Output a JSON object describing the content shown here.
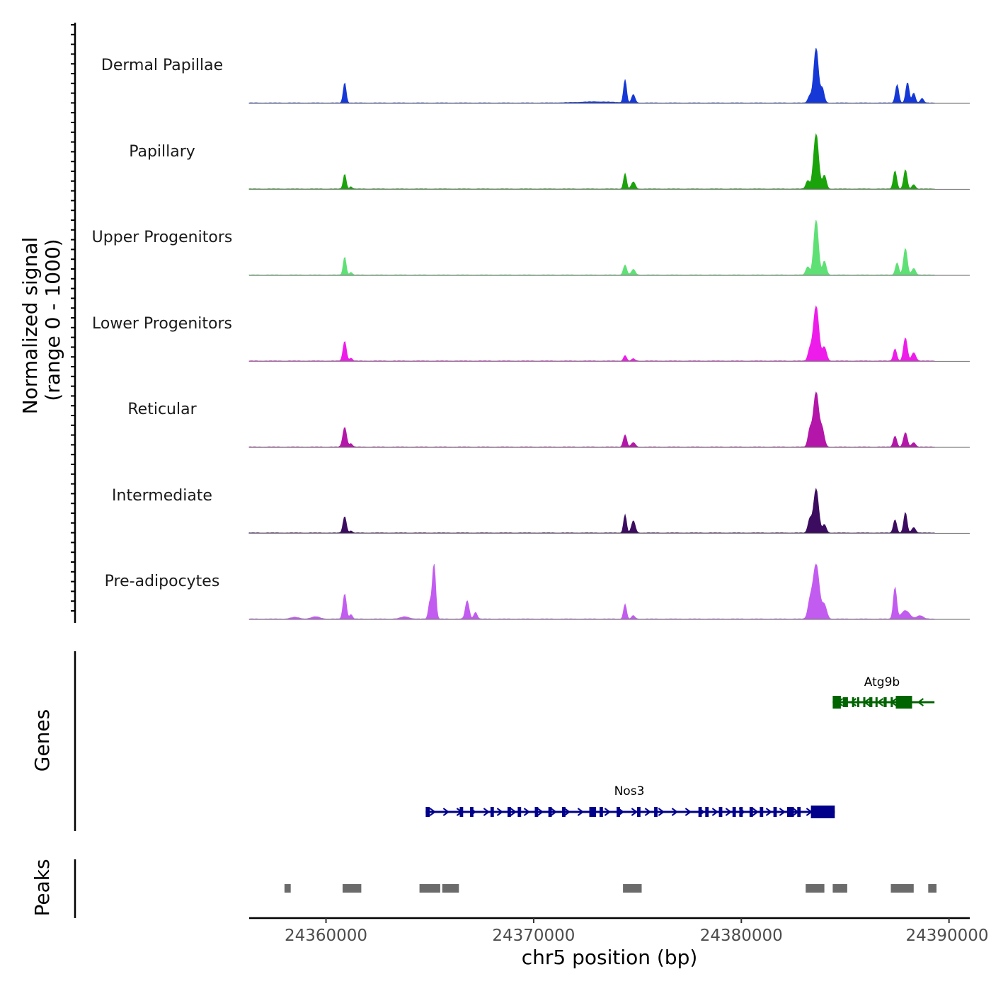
{
  "chart_data": {
    "type": "area",
    "title": "",
    "chromosome": "chr5",
    "xlabel": "chr5 position (bp)",
    "xlim": [
      24356300,
      24391000
    ],
    "xticks": [
      24360000,
      24370000,
      24380000,
      24390000
    ],
    "xtick_labels": [
      "24360000",
      "24370000",
      "24380000",
      "24390000"
    ],
    "ylabel_line1": "Normalized signal",
    "ylabel_line2": "(range 0 - 1000)",
    "signal_ylim": [
      0,
      1000
    ],
    "tracks": [
      {
        "name": "Dermal Papillae",
        "color": "#1538d6",
        "peaks": [
          [
            24360900,
            370,
            70
          ],
          [
            24373000,
            20,
            900
          ],
          [
            24374400,
            420,
            70
          ],
          [
            24374800,
            150,
            80
          ],
          [
            24383300,
            130,
            90
          ],
          [
            24383600,
            1000,
            110
          ],
          [
            24383900,
            260,
            90
          ],
          [
            24387500,
            330,
            80
          ],
          [
            24388000,
            370,
            80
          ],
          [
            24388300,
            180,
            80
          ],
          [
            24388700,
            80,
            80
          ]
        ]
      },
      {
        "name": "Papillary",
        "color": "#1aa30a",
        "peaks": [
          [
            24360900,
            270,
            70
          ],
          [
            24361200,
            40,
            60
          ],
          [
            24374400,
            280,
            70
          ],
          [
            24374800,
            130,
            90
          ],
          [
            24383200,
            150,
            90
          ],
          [
            24383600,
            1000,
            120
          ],
          [
            24384000,
            250,
            90
          ],
          [
            24387400,
            330,
            80
          ],
          [
            24387900,
            350,
            80
          ],
          [
            24388300,
            80,
            80
          ]
        ]
      },
      {
        "name": "Upper Progenitors",
        "color": "#5ee075",
        "peaks": [
          [
            24360900,
            330,
            70
          ],
          [
            24361200,
            50,
            60
          ],
          [
            24374400,
            180,
            80
          ],
          [
            24374800,
            100,
            90
          ],
          [
            24383200,
            150,
            90
          ],
          [
            24383600,
            1000,
            110
          ],
          [
            24384000,
            250,
            90
          ],
          [
            24387500,
            220,
            80
          ],
          [
            24387900,
            480,
            90
          ],
          [
            24388300,
            120,
            90
          ]
        ]
      },
      {
        "name": "Lower Progenitors",
        "color": "#ee1cea",
        "peaks": [
          [
            24360900,
            360,
            80
          ],
          [
            24361200,
            50,
            70
          ],
          [
            24374400,
            100,
            70
          ],
          [
            24374800,
            40,
            80
          ],
          [
            24383300,
            200,
            90
          ],
          [
            24383600,
            1000,
            130
          ],
          [
            24384000,
            250,
            100
          ],
          [
            24387400,
            220,
            80
          ],
          [
            24387900,
            420,
            90
          ],
          [
            24388300,
            150,
            100
          ]
        ]
      },
      {
        "name": "Reticular",
        "color": "#b316a8",
        "peaks": [
          [
            24360900,
            360,
            90
          ],
          [
            24361200,
            60,
            70
          ],
          [
            24374400,
            220,
            80
          ],
          [
            24374800,
            80,
            90
          ],
          [
            24383300,
            300,
            90
          ],
          [
            24383600,
            1000,
            130
          ],
          [
            24383900,
            300,
            100
          ],
          [
            24387400,
            200,
            80
          ],
          [
            24387900,
            260,
            90
          ],
          [
            24388300,
            80,
            90
          ]
        ]
      },
      {
        "name": "Intermediate",
        "color": "#3c0c60",
        "peaks": [
          [
            24360900,
            300,
            80
          ],
          [
            24361200,
            40,
            60
          ],
          [
            24374400,
            330,
            70
          ],
          [
            24374800,
            220,
            90
          ],
          [
            24383300,
            250,
            90
          ],
          [
            24383600,
            800,
            120
          ],
          [
            24384000,
            150,
            90
          ],
          [
            24387400,
            240,
            80
          ],
          [
            24387900,
            370,
            80
          ],
          [
            24388300,
            100,
            90
          ]
        ]
      },
      {
        "name": "Pre-adipocytes",
        "color": "#c25cf0",
        "peaks": [
          [
            24358500,
            30,
            200
          ],
          [
            24359500,
            40,
            200
          ],
          [
            24360900,
            460,
            80
          ],
          [
            24361200,
            80,
            70
          ],
          [
            24363800,
            40,
            200
          ],
          [
            24365000,
            300,
            70
          ],
          [
            24365200,
            1000,
            80
          ],
          [
            24366800,
            330,
            90
          ],
          [
            24367200,
            120,
            80
          ],
          [
            24374400,
            270,
            70
          ],
          [
            24374800,
            60,
            80
          ],
          [
            24383300,
            280,
            100
          ],
          [
            24383600,
            1000,
            150
          ],
          [
            24384000,
            250,
            110
          ],
          [
            24387400,
            570,
            80
          ],
          [
            24387900,
            150,
            200
          ],
          [
            24388600,
            60,
            150
          ]
        ]
      }
    ],
    "genes": [
      {
        "name": "Atg9b",
        "strand": "-",
        "color": "#006400",
        "start": 24384400,
        "end": 24389300
      },
      {
        "name": "Nos3",
        "strand": "+",
        "color": "#00008b",
        "start": 24364800,
        "end": 24384500
      }
    ],
    "genes_label": "Genes",
    "peaks_label": "Peaks",
    "peak_color": "#6b6b6b",
    "peak_regions": [
      [
        24358000,
        24358300
      ],
      [
        24360800,
        24361700
      ],
      [
        24364500,
        24365500
      ],
      [
        24365600,
        24366400
      ],
      [
        24374300,
        24375200
      ],
      [
        24383100,
        24384000
      ],
      [
        24384400,
        24385100
      ],
      [
        24387200,
        24388300
      ],
      [
        24389000,
        24389400
      ]
    ]
  }
}
